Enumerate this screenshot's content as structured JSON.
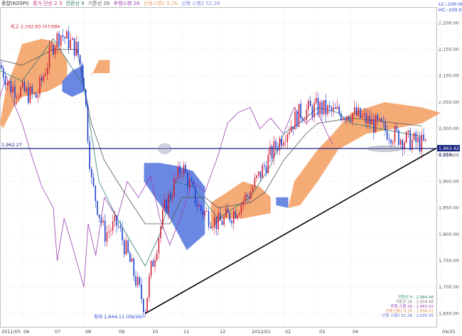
{
  "legend": {
    "main": "종합(KOSPI)",
    "ma": "종가 단순 2 3",
    "ichimoku": [
      {
        "label": "전환선 9",
        "color": "#2e7d6e"
      },
      {
        "label": "기준선 26",
        "color": "#555555"
      },
      {
        "label": "후행스팬 26",
        "color": "#9b3fb5"
      },
      {
        "label": "선행스팬1 9,26",
        "color": "#f0a070"
      },
      {
        "label": "선행 스팬2 52,26",
        "color": "#7a8ad8"
      }
    ],
    "top_right": [
      "LC:-100.00",
      "HC:-100.00"
    ]
  },
  "annotations": {
    "high": "최고 2,192.83 (07/08)",
    "low": "최저 1,644.11 (09/26)",
    "hline_label": "1,962.27",
    "price_tag": "1,963.42",
    "price_tag_pct": "0.05%"
  },
  "bottom_values": [
    {
      "text": "전환선 9 : 1,984.48",
      "color": "#2e8b57"
    },
    {
      "text": "기준선 26 : 2,004.68",
      "color": "#777777"
    },
    {
      "text": "후행 스팬 26 : 1,963.42",
      "color": "#9b3fb5"
    },
    {
      "text": "선행스팬1 9,26 : 1,958.02",
      "color": "#e08a50"
    },
    {
      "text": "선행 스팬2 52,26 : 2,005.65",
      "color": "#5a6ad0"
    }
  ],
  "chart_data": {
    "type": "candlestick-ichimoku",
    "title": "종합(KOSPI)",
    "x_ticks": [
      "2011/05",
      "06",
      "07",
      "08",
      "09",
      "10",
      "11",
      "12",
      "2012/01",
      "02",
      "03",
      "04",
      "04/25"
    ],
    "y_ticks": [
      1650,
      1700,
      1750,
      1800,
      1850,
      1900,
      1950,
      2000,
      2050,
      2100,
      2150,
      2200
    ],
    "ylim": [
      1625,
      2230
    ],
    "y_tick_labels": [
      "1,650.00",
      "1,700.00",
      "1,750.00",
      "1,800.00",
      "1,850.00",
      "1,900.00",
      "1,950.00",
      "2,000.00",
      "2,050.00",
      "2,100.00",
      "2,150.00",
      "2,200.00"
    ],
    "horizontal_line": 1962.27,
    "trendline": {
      "from": {
        "x": "2011/09/26",
        "y": 1650
      },
      "to": {
        "x": "2012/04/25",
        "y": 1963
      }
    },
    "highlights": [
      "2011/10 near 1,962",
      "2012/04 near 1,962"
    ],
    "high": {
      "x": "2011/07/08",
      "y": 2192.83
    },
    "low": {
      "x": "2011/09/26",
      "y": 1644.11
    },
    "last_close": 1963.42,
    "series": [
      {
        "name": "종가",
        "approx_path": [
          [
            "2011/05",
            2120
          ],
          [
            "2011/05/15",
            2080
          ],
          [
            "2011/06",
            2070
          ],
          [
            "2011/06/15",
            2060
          ],
          [
            "2011/07",
            2160
          ],
          [
            "2011/07/08",
            2180
          ],
          [
            "2011/07/25",
            2150
          ],
          [
            "2011/08",
            2090
          ],
          [
            "2011/08/08",
            1900
          ],
          [
            "2011/08/20",
            1800
          ],
          [
            "2011/09",
            1820
          ],
          [
            "2011/09/26",
            1660
          ],
          [
            "2011/10",
            1730
          ],
          [
            "2011/10/15",
            1850
          ],
          [
            "2011/11",
            1930
          ],
          [
            "2011/11/15",
            1850
          ],
          [
            "2011/12",
            1820
          ],
          [
            "2011/12/15",
            1840
          ],
          [
            "2012/01",
            1880
          ],
          [
            "2012/01/20",
            1950
          ],
          [
            "2012/02",
            1990
          ],
          [
            "2012/02/15",
            2030
          ],
          [
            "2012/03",
            2040
          ],
          [
            "2012/03/15",
            2030
          ],
          [
            "2012/04",
            2030
          ],
          [
            "2012/04/15",
            1980
          ],
          [
            "2012/04/25",
            1963
          ]
        ]
      }
    ]
  }
}
